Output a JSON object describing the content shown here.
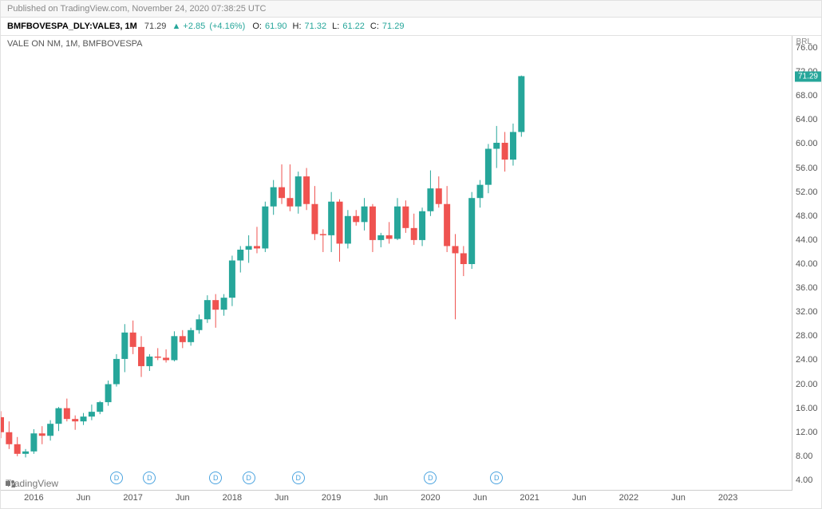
{
  "pub_prefix": "Published on ",
  "pub_site": "TradingView.com",
  "pub_rest": ", November 24, 2020 07:38:25 UTC",
  "symbol_full": "BMFBOVESPA_DLY:VALE3, 1M",
  "last": 71.29,
  "chg": "+2.85",
  "chg_pct": "(+4.16%)",
  "o": "61.90",
  "h": "71.32",
  "l": "61.22",
  "c": "71.29",
  "legend_text": "VALE ON NM, 1M, BMFBOVESPA",
  "currency": "BRL",
  "brand": "TradingView",
  "price_tag": "71.29",
  "colors": {
    "up": "#26a69a",
    "down": "#ef5350",
    "border": "#cccccc",
    "d_marker": "#4aa3df",
    "bg": "#ffffff"
  },
  "chart_geom": {
    "inner_w": 994,
    "inner_h": 572,
    "x_domain": [
      0,
      96
    ],
    "y_domain": [
      2,
      78
    ],
    "candle_body_w": 8,
    "wick_w": 1
  },
  "y_ticks": [
    76,
    72,
    68,
    64,
    60,
    56,
    52,
    48,
    44,
    40,
    36,
    32,
    28,
    24,
    20,
    16,
    12,
    8,
    4
  ],
  "x_ticks": [
    {
      "i": 4,
      "label": "2016"
    },
    {
      "i": 10,
      "label": "Jun"
    },
    {
      "i": 16,
      "label": "2017"
    },
    {
      "i": 22,
      "label": "Jun"
    },
    {
      "i": 28,
      "label": "2018"
    },
    {
      "i": 34,
      "label": "Jun"
    },
    {
      "i": 40,
      "label": "2019"
    },
    {
      "i": 46,
      "label": "Jun"
    },
    {
      "i": 52,
      "label": "2020"
    },
    {
      "i": 58,
      "label": "Jun"
    },
    {
      "i": 64,
      "label": "2021"
    },
    {
      "i": 70,
      "label": "Jun"
    },
    {
      "i": 76,
      "label": "2022"
    },
    {
      "i": 82,
      "label": "Jun"
    },
    {
      "i": 88,
      "label": "2023"
    }
  ],
  "d_markers": [
    14,
    18,
    26,
    30,
    36,
    52,
    60
  ],
  "candles": [
    {
      "i": 0,
      "o": 14.5,
      "h": 15.5,
      "l": 11.0,
      "c": 12.0
    },
    {
      "i": 1,
      "o": 12.0,
      "h": 13.8,
      "l": 9.2,
      "c": 10.0
    },
    {
      "i": 2,
      "o": 10.0,
      "h": 11.2,
      "l": 8.0,
      "c": 8.4
    },
    {
      "i": 3,
      "o": 8.4,
      "h": 9.2,
      "l": 7.8,
      "c": 8.8
    },
    {
      "i": 4,
      "o": 8.8,
      "h": 12.5,
      "l": 8.4,
      "c": 11.8
    },
    {
      "i": 5,
      "o": 11.8,
      "h": 13.0,
      "l": 10.0,
      "c": 11.4
    },
    {
      "i": 6,
      "o": 11.4,
      "h": 14.0,
      "l": 10.6,
      "c": 13.4
    },
    {
      "i": 7,
      "o": 13.4,
      "h": 16.2,
      "l": 12.2,
      "c": 16.0
    },
    {
      "i": 8,
      "o": 16.0,
      "h": 17.6,
      "l": 13.8,
      "c": 14.2
    },
    {
      "i": 9,
      "o": 14.2,
      "h": 14.8,
      "l": 12.4,
      "c": 13.8
    },
    {
      "i": 10,
      "o": 13.8,
      "h": 15.2,
      "l": 13.2,
      "c": 14.6
    },
    {
      "i": 11,
      "o": 14.6,
      "h": 16.6,
      "l": 14.0,
      "c": 15.4
    },
    {
      "i": 12,
      "o": 15.4,
      "h": 17.2,
      "l": 15.0,
      "c": 17.0
    },
    {
      "i": 13,
      "o": 17.0,
      "h": 20.6,
      "l": 16.4,
      "c": 20.0
    },
    {
      "i": 14,
      "o": 20.0,
      "h": 25.0,
      "l": 19.6,
      "c": 24.2
    },
    {
      "i": 15,
      "o": 24.2,
      "h": 30.0,
      "l": 22.0,
      "c": 28.6
    },
    {
      "i": 16,
      "o": 28.6,
      "h": 30.6,
      "l": 25.0,
      "c": 26.2
    },
    {
      "i": 17,
      "o": 26.2,
      "h": 28.0,
      "l": 21.2,
      "c": 23.0
    },
    {
      "i": 18,
      "o": 23.0,
      "h": 25.0,
      "l": 22.2,
      "c": 24.6
    },
    {
      "i": 19,
      "o": 24.6,
      "h": 26.0,
      "l": 24.0,
      "c": 24.4
    },
    {
      "i": 20,
      "o": 24.4,
      "h": 25.8,
      "l": 23.6,
      "c": 24.0
    },
    {
      "i": 21,
      "o": 24.0,
      "h": 28.8,
      "l": 23.8,
      "c": 28.0
    },
    {
      "i": 22,
      "o": 28.0,
      "h": 29.0,
      "l": 26.0,
      "c": 27.0
    },
    {
      "i": 23,
      "o": 27.0,
      "h": 29.4,
      "l": 26.4,
      "c": 29.0
    },
    {
      "i": 24,
      "o": 29.0,
      "h": 31.6,
      "l": 28.4,
      "c": 30.8
    },
    {
      "i": 25,
      "o": 30.8,
      "h": 34.8,
      "l": 30.2,
      "c": 34.0
    },
    {
      "i": 26,
      "o": 34.0,
      "h": 35.0,
      "l": 29.4,
      "c": 32.4
    },
    {
      "i": 27,
      "o": 32.4,
      "h": 35.0,
      "l": 31.4,
      "c": 34.4
    },
    {
      "i": 28,
      "o": 34.4,
      "h": 41.4,
      "l": 33.0,
      "c": 40.6
    },
    {
      "i": 29,
      "o": 40.6,
      "h": 43.0,
      "l": 38.6,
      "c": 42.4
    },
    {
      "i": 30,
      "o": 42.4,
      "h": 44.8,
      "l": 40.2,
      "c": 43.0
    },
    {
      "i": 31,
      "o": 43.0,
      "h": 46.2,
      "l": 41.8,
      "c": 42.6
    },
    {
      "i": 32,
      "o": 42.6,
      "h": 50.4,
      "l": 42.0,
      "c": 49.6
    },
    {
      "i": 33,
      "o": 49.6,
      "h": 54.0,
      "l": 48.2,
      "c": 52.8
    },
    {
      "i": 34,
      "o": 52.8,
      "h": 56.6,
      "l": 50.0,
      "c": 51.0
    },
    {
      "i": 35,
      "o": 51.0,
      "h": 56.6,
      "l": 48.8,
      "c": 49.6
    },
    {
      "i": 36,
      "o": 49.6,
      "h": 55.4,
      "l": 48.4,
      "c": 54.6
    },
    {
      "i": 37,
      "o": 54.6,
      "h": 56.0,
      "l": 49.0,
      "c": 50.0
    },
    {
      "i": 38,
      "o": 50.0,
      "h": 53.0,
      "l": 44.0,
      "c": 45.0
    },
    {
      "i": 39,
      "o": 45.0,
      "h": 45.8,
      "l": 42.0,
      "c": 44.8
    },
    {
      "i": 40,
      "o": 44.8,
      "h": 52.0,
      "l": 42.0,
      "c": 50.4
    },
    {
      "i": 41,
      "o": 50.4,
      "h": 50.8,
      "l": 40.4,
      "c": 43.4
    },
    {
      "i": 42,
      "o": 43.4,
      "h": 49.0,
      "l": 42.6,
      "c": 48.0
    },
    {
      "i": 43,
      "o": 48.0,
      "h": 49.0,
      "l": 46.4,
      "c": 47.0
    },
    {
      "i": 44,
      "o": 47.0,
      "h": 51.0,
      "l": 45.6,
      "c": 49.6
    },
    {
      "i": 45,
      "o": 49.6,
      "h": 50.0,
      "l": 42.0,
      "c": 44.0
    },
    {
      "i": 46,
      "o": 44.0,
      "h": 45.2,
      "l": 42.8,
      "c": 44.8
    },
    {
      "i": 47,
      "o": 44.8,
      "h": 47.0,
      "l": 43.4,
      "c": 44.2
    },
    {
      "i": 48,
      "o": 44.2,
      "h": 51.0,
      "l": 44.0,
      "c": 49.6
    },
    {
      "i": 49,
      "o": 49.6,
      "h": 50.6,
      "l": 45.2,
      "c": 46.0
    },
    {
      "i": 50,
      "o": 46.0,
      "h": 48.4,
      "l": 43.2,
      "c": 44.0
    },
    {
      "i": 51,
      "o": 44.0,
      "h": 49.4,
      "l": 43.0,
      "c": 48.8
    },
    {
      "i": 52,
      "o": 48.8,
      "h": 55.6,
      "l": 48.0,
      "c": 52.6
    },
    {
      "i": 53,
      "o": 52.6,
      "h": 54.6,
      "l": 49.4,
      "c": 50.0
    },
    {
      "i": 54,
      "o": 50.0,
      "h": 53.0,
      "l": 42.0,
      "c": 43.0
    },
    {
      "i": 55,
      "o": 43.0,
      "h": 45.0,
      "l": 30.8,
      "c": 41.8
    },
    {
      "i": 56,
      "o": 41.8,
      "h": 43.0,
      "l": 38.0,
      "c": 40.0
    },
    {
      "i": 57,
      "o": 40.0,
      "h": 52.0,
      "l": 39.2,
      "c": 51.0
    },
    {
      "i": 58,
      "o": 51.0,
      "h": 54.0,
      "l": 49.4,
      "c": 53.2
    },
    {
      "i": 59,
      "o": 53.2,
      "h": 60.0,
      "l": 51.8,
      "c": 59.2
    },
    {
      "i": 60,
      "o": 59.2,
      "h": 63.0,
      "l": 56.0,
      "c": 60.2
    },
    {
      "i": 61,
      "o": 60.2,
      "h": 62.0,
      "l": 55.4,
      "c": 57.4
    },
    {
      "i": 62,
      "o": 57.4,
      "h": 63.4,
      "l": 56.4,
      "c": 62.0
    },
    {
      "i": 63,
      "o": 62.0,
      "h": 71.4,
      "l": 61.2,
      "c": 71.3
    }
  ]
}
